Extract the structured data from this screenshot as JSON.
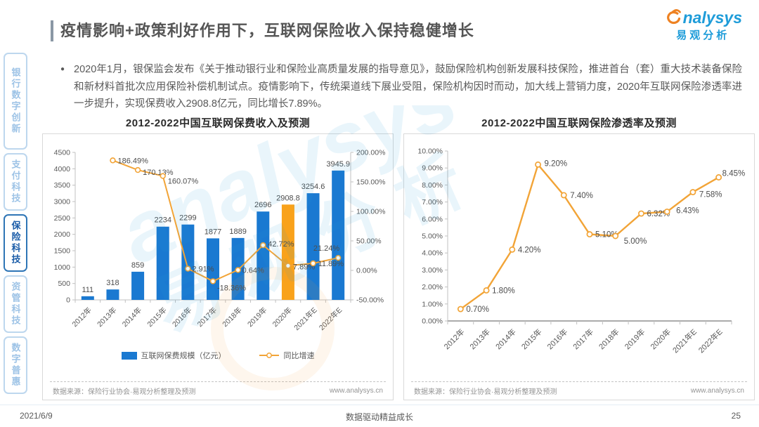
{
  "header": {
    "title": "疫情影响+政策利好作用下，互联网保险收入保持稳健增长"
  },
  "logo": {
    "brand": "analysys",
    "brand_display_rest": "nalysys",
    "brand_cn": "易观分析"
  },
  "bullet": {
    "text": "2020年1月，银保监会发布《关于推动银行业和保险业高质量发展的指导意见》，鼓励保险机构创新发展科技保险，推进首台（套）重大技术装备保险和新材料首批次应用保险补偿机制试点。疫情影响下，传统渠道线下展业受阻，保险机构因时而动，加大线上营销力度，2020年互联网保险渗透率进一步提升，实现保费收入2908.8亿元，同比增长7.89%。"
  },
  "sidebar": {
    "items": [
      {
        "label": "银行数字创新",
        "active": false
      },
      {
        "label": "支付科技",
        "active": false
      },
      {
        "label": "保险科技",
        "active": true
      },
      {
        "label": "资管科技",
        "active": false
      },
      {
        "label": "数字普惠",
        "active": false
      }
    ]
  },
  "watermark": {
    "brand": "analysys",
    "brand_cn": "易观分析"
  },
  "chart_data": [
    {
      "type": "bar",
      "title": "2012-2022中国互联网保费收入及预测",
      "categories": [
        "2012年",
        "2013年",
        "2014年",
        "2015年",
        "2016年",
        "2017年",
        "2018年",
        "2019年",
        "2020年",
        "2021年E",
        "2022年E"
      ],
      "series": [
        {
          "name": "互联网保费规模（亿元）",
          "type": "bar",
          "values": [
            111,
            318,
            859,
            2234,
            2299,
            1877,
            1889,
            2696,
            2908.8,
            3254.6,
            3945.9
          ],
          "labels": [
            "111",
            "318",
            "859",
            "2234",
            "2299",
            "1877",
            "1889",
            "2696",
            "2908.8",
            "3254.6",
            "3945.9"
          ]
        },
        {
          "name": "同比增速",
          "type": "line",
          "values": [
            null,
            186.49,
            170.13,
            160.07,
            2.91,
            -18.36,
            0.64,
            42.72,
            7.89,
            11.89,
            21.24
          ],
          "labels": [
            null,
            "186.49%",
            "170.13%",
            "160.07%",
            "2.91%",
            "-18.36%",
            "0.64%",
            "42.72%",
            "7.89%",
            "11.89%",
            "21.24%"
          ]
        }
      ],
      "highlight_index": 8,
      "y_left": {
        "min": 0,
        "max": 4500,
        "ticks": [
          "0",
          "500",
          "1000",
          "1500",
          "2000",
          "2500",
          "3000",
          "3500",
          "4000",
          "4500"
        ]
      },
      "y_right": {
        "min": -50,
        "max": 200,
        "ticks": [
          "-50.00%",
          "0.00%",
          "50.00%",
          "100.00%",
          "150.00%",
          "200.00%"
        ]
      },
      "legend": [
        "互联网保费规模（亿元）",
        "同比增速"
      ],
      "source": "数据来源：保险行业协会·易观分析整理及预测",
      "website": "www.analysys.cn"
    },
    {
      "type": "line",
      "title": "2012-2022中国互联网保险渗透率及预测",
      "categories": [
        "2012年",
        "2013年",
        "2014年",
        "2015年",
        "2016年",
        "2017年",
        "2018年",
        "2019年",
        "2020年",
        "2021年E",
        "2022年E"
      ],
      "values": [
        0.7,
        1.8,
        4.2,
        9.2,
        7.4,
        5.1,
        5.0,
        6.32,
        6.43,
        7.58,
        8.45
      ],
      "labels": [
        "0.70%",
        "1.80%",
        "4.20%",
        "9.20%",
        "7.40%",
        "5.10%",
        "5.00%",
        "6.32%",
        "6.43%",
        "7.58%",
        "8.45%"
      ],
      "ylim": [
        0,
        10
      ],
      "y_ticks": [
        "0.00%",
        "1.00%",
        "2.00%",
        "3.00%",
        "4.00%",
        "5.00%",
        "6.00%",
        "7.00%",
        "8.00%",
        "9.00%",
        "10.00%"
      ],
      "source": "数据来源：保险行业协会·易观分析整理及预测",
      "website": "www.analysys.cn"
    }
  ],
  "footer": {
    "date": "2021/6/9",
    "slogan": "数据驱动精益成长",
    "page_number": "25"
  },
  "colors": {
    "bar_blue": "#1A79D1",
    "bar_highlight_orange": "#F9A21B",
    "line_orange": "#F2A437",
    "brand_blue": "#1E9CD9",
    "brand_orange": "#EE8222",
    "sidebar_inactive": "#9DC3E6",
    "sidebar_active": "#1A5CA8",
    "axis_gray": "#c0c0c0",
    "label_gray": "#4d4d4d"
  }
}
